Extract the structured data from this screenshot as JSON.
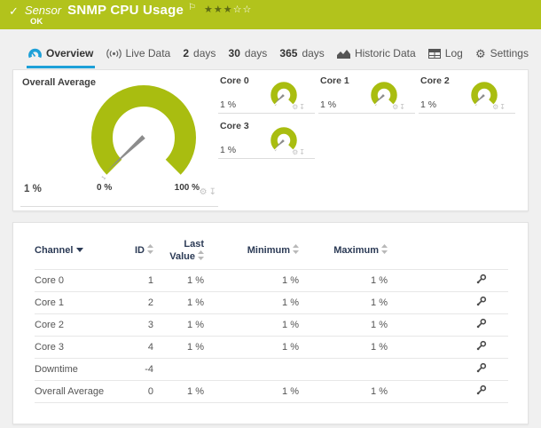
{
  "header": {
    "kind": "Sensor",
    "title": "SNMP CPU Usage",
    "status": "OK",
    "rating": {
      "filled": 3,
      "total": 5
    },
    "bg_color": "#b2c31c"
  },
  "tabs": {
    "overview": {
      "label": "Overview"
    },
    "live_data": {
      "label": "Live Data"
    },
    "days2": {
      "num": "2",
      "label": "days"
    },
    "days30": {
      "num": "30",
      "label": "days"
    },
    "days365": {
      "num": "365",
      "label": "days"
    },
    "historic": {
      "label": "Historic Data"
    },
    "log": {
      "label": "Log"
    },
    "settings": {
      "label": "Settings"
    }
  },
  "gauges": {
    "color": "#a9bd10",
    "needle_color": "#8c8c8c",
    "overall": {
      "title": "Overall Average",
      "value": "1 %",
      "scale_min": "0 %",
      "scale_max": "100 %",
      "percent": 1,
      "needle_label": "1"
    },
    "cores": [
      {
        "title": "Core 0",
        "value": "1 %",
        "percent": 1
      },
      {
        "title": "Core 1",
        "value": "1 %",
        "percent": 1
      },
      {
        "title": "Core 2",
        "value": "1 %",
        "percent": 1
      },
      {
        "title": "Core 3",
        "value": "1 %",
        "percent": 1
      }
    ]
  },
  "table": {
    "headers": {
      "channel": "Channel",
      "id": "ID",
      "last_line1": "Last",
      "last_line2": "Value",
      "min": "Minimum",
      "max": "Maximum"
    },
    "rows": [
      {
        "channel": "Core 0",
        "id": "1",
        "last": "1 %",
        "min": "1 %",
        "max": "1 %"
      },
      {
        "channel": "Core 1",
        "id": "2",
        "last": "1 %",
        "min": "1 %",
        "max": "1 %"
      },
      {
        "channel": "Core 2",
        "id": "3",
        "last": "1 %",
        "min": "1 %",
        "max": "1 %"
      },
      {
        "channel": "Core 3",
        "id": "4",
        "last": "1 %",
        "min": "1 %",
        "max": "1 %"
      },
      {
        "channel": "Downtime",
        "id": "-4",
        "last": "",
        "min": "",
        "max": ""
      },
      {
        "channel": "Overall Average",
        "id": "0",
        "last": "1 %",
        "min": "1 %",
        "max": "1 %"
      }
    ]
  }
}
